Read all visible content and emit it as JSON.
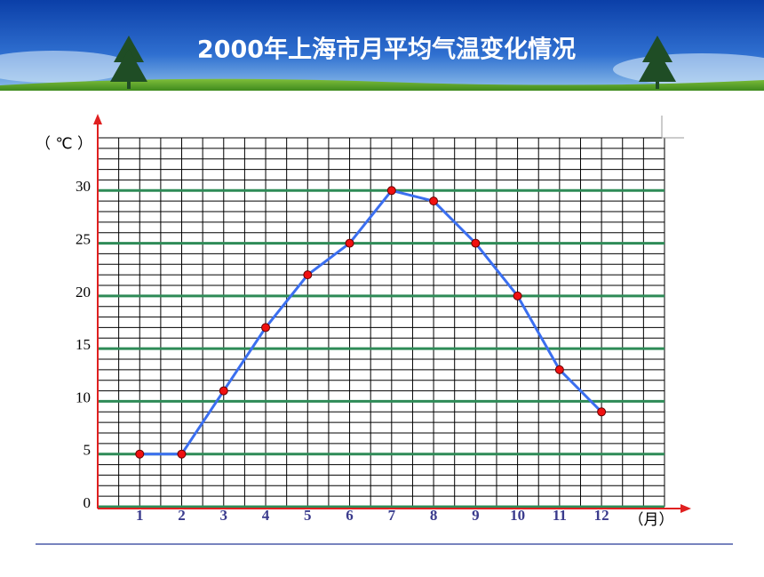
{
  "chart_data": {
    "type": "line",
    "title": "2000年上海市月平均气温变化情况",
    "y_label": "（ ℃ ）",
    "x_label": "（月）",
    "x": [
      1,
      2,
      3,
      4,
      5,
      6,
      7,
      8,
      9,
      10,
      11,
      12
    ],
    "series": [
      {
        "color": "#3b6ff0",
        "values": [
          5,
          5,
          11,
          17,
          22,
          25,
          30,
          29,
          25,
          20,
          13,
          9
        ]
      }
    ],
    "xlim": [
      0,
      13.5
    ],
    "ylim": [
      0,
      35
    ],
    "yticks": [
      0,
      5,
      10,
      15,
      20,
      25,
      30
    ],
    "grid": true
  }
}
